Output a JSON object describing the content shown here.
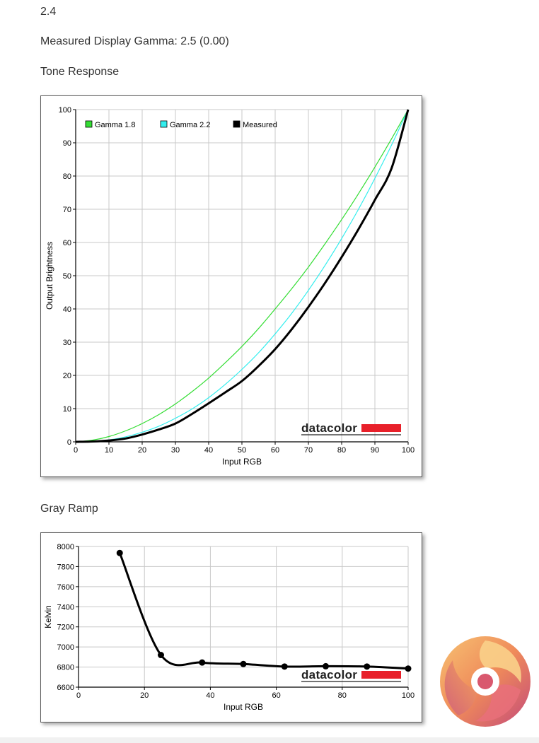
{
  "page": {
    "gamma_target": "2.4",
    "measured_gamma": "Measured Display Gamma: 2.5 (0.00)",
    "tone_heading": "Tone Response",
    "gray_heading": "Gray Ramp"
  },
  "watermark": "datacolor",
  "colors": {
    "gamma18": "#33dd33",
    "gamma22": "#33eeee",
    "measured": "#000000",
    "grid": "#c8c8c8",
    "watermark_bar": "#e8202a"
  },
  "chart_data": [
    {
      "type": "line",
      "title": "",
      "xlabel": "Input RGB",
      "ylabel": "Output Brightness",
      "xlim": [
        0,
        100
      ],
      "ylim": [
        0,
        100
      ],
      "xticks": [
        0,
        10,
        20,
        30,
        40,
        50,
        60,
        70,
        80,
        90,
        100
      ],
      "yticks": [
        0,
        10,
        20,
        30,
        40,
        50,
        60,
        70,
        80,
        90,
        100
      ],
      "grid": true,
      "legend_position": "top-left",
      "series": [
        {
          "name": "Gamma 1.8",
          "color": "#33dd33",
          "x": [
            0,
            5,
            10,
            15,
            20,
            25,
            30,
            35,
            40,
            45,
            50,
            55,
            60,
            65,
            70,
            75,
            80,
            85,
            90,
            95,
            100
          ],
          "y": [
            0,
            0.5,
            1.6,
            3.3,
            5.5,
            8.2,
            11.4,
            15.1,
            19.2,
            23.8,
            28.7,
            34.1,
            40.0,
            46.1,
            52.6,
            59.6,
            66.9,
            74.6,
            82.7,
            91.2,
            100
          ]
        },
        {
          "name": "Gamma 2.2",
          "color": "#33eeee",
          "x": [
            0,
            5,
            10,
            15,
            20,
            25,
            30,
            35,
            40,
            45,
            50,
            55,
            60,
            65,
            70,
            75,
            80,
            85,
            90,
            95,
            100
          ],
          "y": [
            0,
            0.1,
            0.6,
            1.5,
            2.9,
            4.7,
            7.1,
            9.9,
            13.3,
            17.3,
            21.8,
            26.8,
            32.5,
            38.7,
            45.6,
            53.1,
            61.2,
            69.9,
            79.3,
            89.3,
            100
          ]
        },
        {
          "name": "Measured",
          "color": "#000000",
          "x": [
            0,
            5,
            10,
            15,
            20,
            25,
            30,
            35,
            40,
            45,
            50,
            55,
            60,
            65,
            70,
            75,
            80,
            85,
            90,
            95,
            100
          ],
          "y": [
            0,
            0.1,
            0.4,
            1.0,
            2.2,
            3.7,
            5.5,
            8.4,
            11.6,
            14.9,
            18.3,
            22.8,
            27.9,
            33.9,
            40.6,
            47.8,
            55.6,
            63.9,
            72.8,
            82.3,
            100
          ]
        }
      ]
    },
    {
      "type": "line",
      "title": "",
      "xlabel": "Input RGB",
      "ylabel": "Kelvin",
      "xlim": [
        0,
        100
      ],
      "ylim": [
        6600,
        8000
      ],
      "xticks": [
        0,
        20,
        40,
        60,
        80,
        100
      ],
      "yticks": [
        6600,
        6800,
        7000,
        7200,
        7400,
        7600,
        7800,
        8000
      ],
      "grid": true,
      "series": [
        {
          "name": "",
          "color": "#000000",
          "x": [
            12.5,
            25,
            37.5,
            50,
            62.5,
            75,
            87.5,
            100
          ],
          "y": [
            7935,
            6920,
            6845,
            6830,
            6805,
            6808,
            6805,
            6785
          ]
        }
      ]
    }
  ]
}
